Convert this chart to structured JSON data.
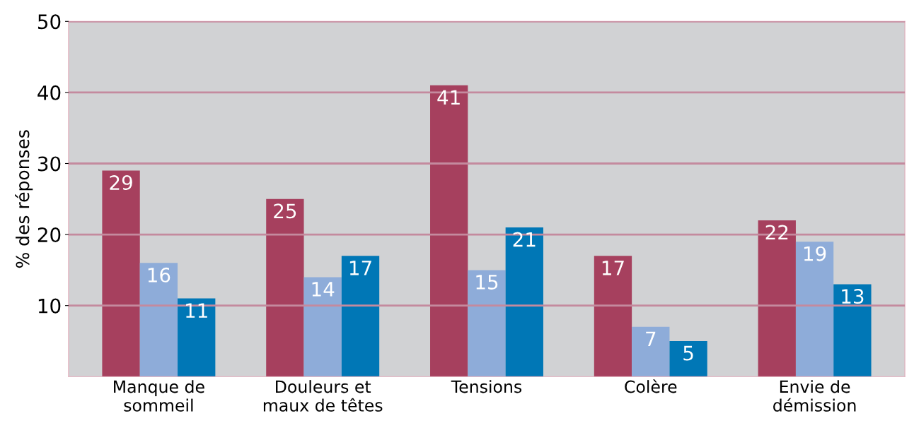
{
  "chart_data": {
    "type": "bar",
    "ylabel": "% des réponses",
    "categories": [
      "Manque de\nsommeil",
      "Douleurs et\nmaux de têtes",
      "Tensions",
      "Colère",
      "Envie de\ndémission"
    ],
    "series": [
      {
        "color": "#a6405e",
        "values": [
          29,
          25,
          41,
          17,
          22
        ]
      },
      {
        "color": "#8eacd9",
        "values": [
          16,
          14,
          15,
          7,
          19
        ]
      },
      {
        "color": "#0077b6",
        "values": [
          11,
          17,
          21,
          5,
          13
        ]
      }
    ],
    "ylim": [
      0,
      50
    ],
    "yticks": [
      10,
      20,
      30,
      40,
      50
    ],
    "grid": "y",
    "data_labels": true
  }
}
